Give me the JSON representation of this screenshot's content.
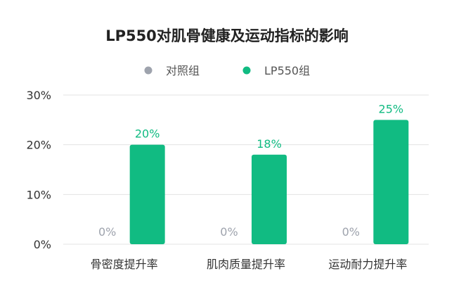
{
  "chart_data": {
    "type": "bar",
    "title": "LP550对肌骨健康及运动指标的影响",
    "categories": [
      "骨密度提升率",
      "肌肉质量提升率",
      "运动耐力提升率"
    ],
    "series": [
      {
        "name": "对照组",
        "values": [
          0,
          0,
          0
        ],
        "color": "#9ea3ad"
      },
      {
        "name": "LP550组",
        "values": [
          20,
          18,
          25
        ],
        "color": "#11bb82"
      }
    ],
    "y_ticks": [
      "0%",
      "10%",
      "20%",
      "30%"
    ],
    "data_labels": [
      [
        "0%",
        "0%",
        "0%"
      ],
      [
        "20%",
        "18%",
        "25%"
      ]
    ],
    "ylim": [
      0,
      30
    ],
    "grid": true,
    "legend_position": "top-center",
    "colors": {
      "title": "#222222",
      "axis_text": "#333333",
      "grid": "#e3e3e3"
    }
  }
}
